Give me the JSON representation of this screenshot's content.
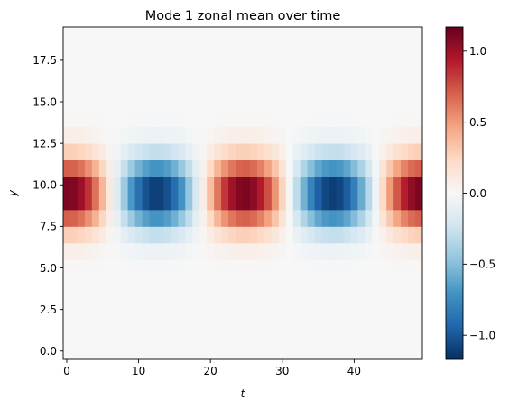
{
  "chart_data": {
    "type": "heatmap",
    "title": "Mode 1 zonal mean over time",
    "xlabel": "t",
    "ylabel": "y",
    "x_cells": 50,
    "y_cells": 20,
    "xlim": [
      -0.5,
      49.5
    ],
    "ylim": [
      -0.5,
      19.5
    ],
    "xticks": [
      0,
      10,
      20,
      30,
      40
    ],
    "yticks": [
      0.0,
      2.5,
      5.0,
      7.5,
      10.0,
      12.5,
      15.0,
      17.5
    ],
    "colormap": "RdBu_r",
    "clim": [
      -1.17,
      1.17
    ],
    "colorbar_ticks": [
      -1.0,
      -0.5,
      0.0,
      0.5,
      1.0
    ],
    "grid": false,
    "legend": "none",
    "model": {
      "field": "exp(-((y-9.5)/2.1)^2) * cos(2*pi*(t-0.3)/24.5)",
      "center_y": 9.5,
      "width_y": 2.1,
      "period_t": 24.5,
      "phase_t": 0.3,
      "amplitude": 1.17
    },
    "notes": "Gaussian band in y centred near 10, oscillating in time: red maxima near t=0, 25, 49; blue minima near t=12, 37"
  }
}
